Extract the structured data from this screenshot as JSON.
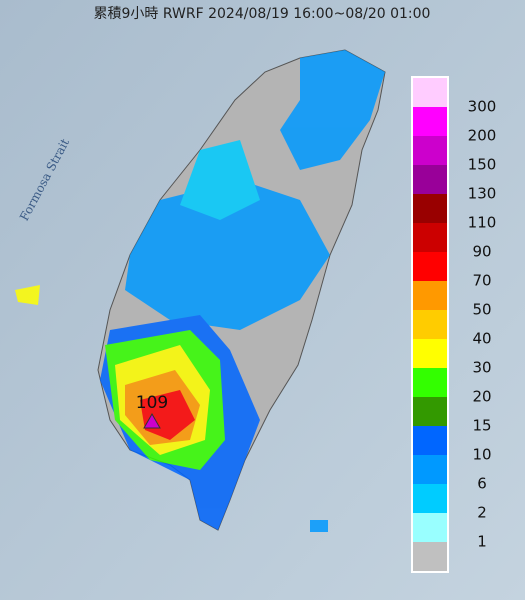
{
  "header": {
    "title": "累積9小時 RWRF 2024/08/19 16:00~08/20 01:00"
  },
  "map": {
    "strait_label": "Formosa Strait",
    "max_label": "109"
  },
  "legend": {
    "colors": [
      "#ffccff",
      "#ff00ff",
      "#cc00cc",
      "#990099",
      "#990000",
      "#cc0000",
      "#ff0000",
      "#ff9900",
      "#ffcc00",
      "#ffff00",
      "#33ff00",
      "#339900",
      "#0066ff",
      "#0099ff",
      "#00ccff",
      "#99ffff",
      "#c0c0c0"
    ],
    "labels": [
      "300",
      "200",
      "150",
      "130",
      "110",
      "90",
      "70",
      "50",
      "40",
      "30",
      "20",
      "15",
      "10",
      "6",
      "2",
      "1"
    ]
  }
}
